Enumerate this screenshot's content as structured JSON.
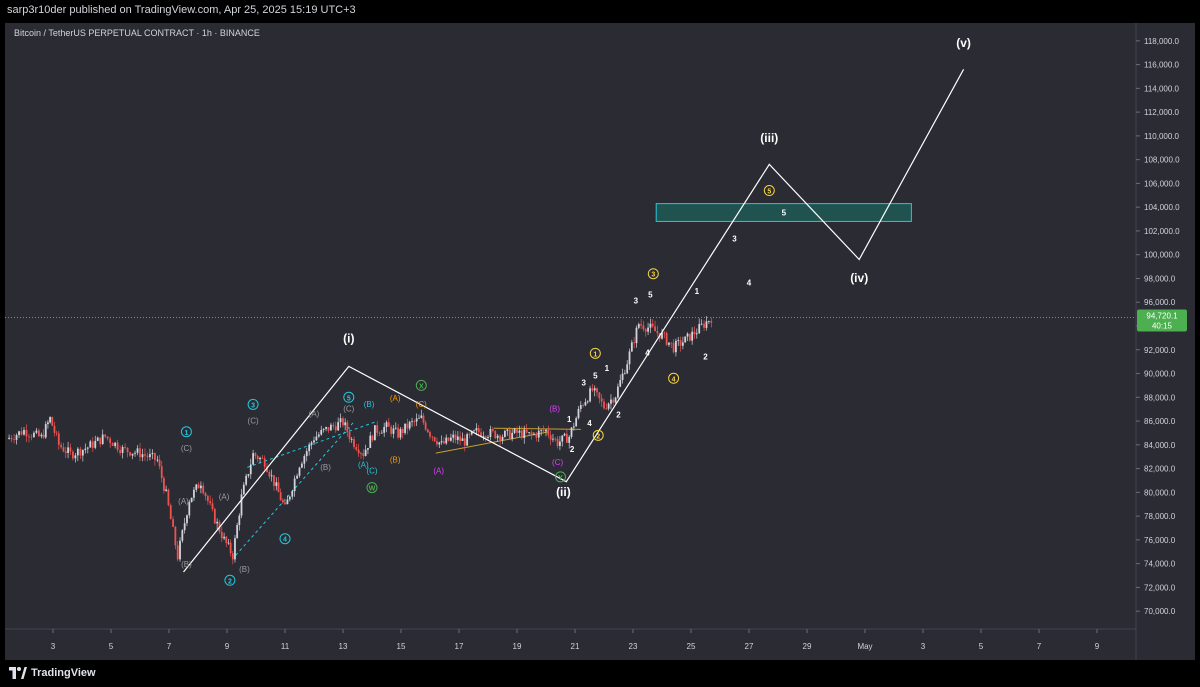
{
  "header": {
    "publisher_line": "sarp3r10der published on TradingView.com, Apr 25, 2025 15:19 UTC+3"
  },
  "chart_title": "Bitcoin / TetherUS PERPETUAL CONTRACT · 1h · BINANCE",
  "footer": {
    "brand": "TradingView"
  },
  "price_label": {
    "value": "94,720.1",
    "countdown": "40:15"
  },
  "colors": {
    "background": "#2a2b33",
    "up": "#d1d4dc",
    "down": "#ef5350",
    "wave": "#ffffff",
    "target_zone": "#1e5a56",
    "target_zone_border": "#26c6da",
    "current_price": "#4caf50",
    "price_tag": "#4caf50",
    "orange_label": "#ff9800",
    "yellow_label": "#f5d442",
    "cyan_label": "#26c6da",
    "green_label": "#4caf50",
    "purple_label": "#e040fb",
    "gray_label": "#9e9e9e"
  },
  "chart_data": {
    "type": "candlestick",
    "title": "Bitcoin / TetherUS PERPETUAL CONTRACT · 1h · BINANCE",
    "y_ticks": [
      70000,
      72000,
      74000,
      76000,
      78000,
      80000,
      82000,
      84000,
      86000,
      88000,
      90000,
      92000,
      94000,
      96000,
      98000,
      100000,
      102000,
      104000,
      106000,
      108000,
      110000,
      112000,
      114000,
      116000,
      118000
    ],
    "y_tick_labels": [
      "70,000.0",
      "72,000.0",
      "74,000.0",
      "76,000.0",
      "78,000.0",
      "80,000.0",
      "82,000.0",
      "84,000.0",
      "86,000.0",
      "88,000.0",
      "90,000.0",
      "92,000.0",
      "94,000.0",
      "96,000.0",
      "98,000.0",
      "100,000.0",
      "102,000.0",
      "104,000.0",
      "106,000.0",
      "108,000.0",
      "110,000.0",
      "112,000.0",
      "114,000.0",
      "116,000.0",
      "118,000.0"
    ],
    "ylim": [
      68500,
      119500
    ],
    "x_range_days": [
      1.4,
      11.5
    ],
    "x_ticks": [
      {
        "day": 3,
        "label": "3"
      },
      {
        "day": 5,
        "label": "5"
      },
      {
        "day": 7,
        "label": "7"
      },
      {
        "day": 9,
        "label": "9"
      },
      {
        "day": 11,
        "label": "11"
      },
      {
        "day": 13,
        "label": "13"
      },
      {
        "day": 15,
        "label": "15"
      },
      {
        "day": 17,
        "label": "17"
      },
      {
        "day": 19,
        "label": "19"
      },
      {
        "day": 21,
        "label": "21"
      },
      {
        "day": 23,
        "label": "23"
      },
      {
        "day": 25,
        "label": "25"
      },
      {
        "day": 27,
        "label": "27"
      },
      {
        "day": 29,
        "label": "29"
      },
      {
        "day": 31,
        "label": "May"
      },
      {
        "day": 33,
        "label": "3"
      },
      {
        "day": 35,
        "label": "5"
      },
      {
        "day": 37,
        "label": "7"
      },
      {
        "day": 39,
        "label": "9"
      }
    ],
    "current_price": 94720.1,
    "price_path": [
      [
        1.4,
        84500
      ],
      [
        2.0,
        85200
      ],
      [
        2.6,
        84600
      ],
      [
        2.9,
        86200
      ],
      [
        3.2,
        84000
      ],
      [
        3.6,
        83200
      ],
      [
        4.2,
        83800
      ],
      [
        4.8,
        84700
      ],
      [
        5.4,
        83600
      ],
      [
        6.0,
        83300
      ],
      [
        6.6,
        82700
      ],
      [
        6.9,
        79800
      ],
      [
        7.3,
        74600
      ],
      [
        7.7,
        79400
      ],
      [
        8.1,
        80900
      ],
      [
        8.5,
        78200
      ],
      [
        8.9,
        76000
      ],
      [
        9.2,
        74700
      ],
      [
        9.5,
        79600
      ],
      [
        9.9,
        83200
      ],
      [
        10.3,
        82600
      ],
      [
        10.7,
        80400
      ],
      [
        11.0,
        78600
      ],
      [
        11.5,
        82400
      ],
      [
        12.0,
        84600
      ],
      [
        12.5,
        85400
      ],
      [
        13.0,
        85900
      ],
      [
        13.3,
        84400
      ],
      [
        13.7,
        83300
      ],
      [
        14.1,
        85200
      ],
      [
        14.5,
        85500
      ],
      [
        14.9,
        84900
      ],
      [
        15.3,
        85700
      ],
      [
        15.7,
        86200
      ],
      [
        16.0,
        85000
      ],
      [
        16.4,
        84000
      ],
      [
        16.8,
        84600
      ],
      [
        17.2,
        84300
      ],
      [
        17.6,
        85100
      ],
      [
        18.0,
        85000
      ],
      [
        18.5,
        84800
      ],
      [
        19.0,
        85000
      ],
      [
        19.5,
        84800
      ],
      [
        20.0,
        85200
      ],
      [
        20.4,
        84200
      ],
      [
        20.8,
        84700
      ],
      [
        21.2,
        87300
      ],
      [
        21.6,
        88600
      ],
      [
        22.0,
        87200
      ],
      [
        22.4,
        88200
      ],
      [
        22.8,
        91000
      ],
      [
        23.2,
        94200
      ],
      [
        23.6,
        93800
      ],
      [
        24.0,
        93200
      ],
      [
        24.4,
        92200
      ],
      [
        24.8,
        92800
      ],
      [
        25.2,
        93600
      ],
      [
        25.7,
        94720
      ]
    ],
    "wave_projection": [
      [
        7.5,
        73300
      ],
      [
        13.2,
        90600
      ],
      [
        20.7,
        80900
      ],
      [
        27.7,
        107600
      ],
      [
        30.8,
        99600
      ],
      [
        34.4,
        115600
      ]
    ],
    "target_zone": {
      "x_from": 23.8,
      "x_to": 32.6,
      "y_from": 102800,
      "y_to": 104300,
      "label": "5"
    },
    "yellow_channel": [
      [
        [
          16.2,
          83300
        ],
        [
          20.1,
          85100
        ]
      ],
      [
        [
          18.2,
          85400
        ],
        [
          21.2,
          85300
        ]
      ]
    ],
    "cyan_channel": [
      [
        [
          9.3,
          74700
        ],
        [
          13.4,
          86000
        ]
      ],
      [
        [
          9.7,
          82100
        ],
        [
          14.2,
          86000
        ]
      ]
    ],
    "wave_labels": [
      {
        "text": "(i)",
        "day": 13.2,
        "price": 92600,
        "style": "big"
      },
      {
        "text": "(ii)",
        "day": 20.6,
        "price": 79700,
        "style": "big"
      },
      {
        "text": "(iii)",
        "day": 27.7,
        "price": 109500,
        "style": "big"
      },
      {
        "text": "(iv)",
        "day": 30.8,
        "price": 97700,
        "style": "big"
      },
      {
        "text": "(v)",
        "day": 34.4,
        "price": 117500,
        "style": "big"
      },
      {
        "text": "1",
        "day": 7.6,
        "price": 85100,
        "style": "circle",
        "color": "cyan"
      },
      {
        "text": "(C)",
        "day": 7.6,
        "price": 83500,
        "style": "small",
        "color": "gray"
      },
      {
        "text": "(A)",
        "day": 7.5,
        "price": 79000,
        "style": "small",
        "color": "gray"
      },
      {
        "text": "(B)",
        "day": 7.6,
        "price": 73700,
        "style": "small",
        "color": "gray"
      },
      {
        "text": "2",
        "day": 9.1,
        "price": 72600,
        "style": "circle",
        "color": "cyan"
      },
      {
        "text": "(B)",
        "day": 9.6,
        "price": 73300,
        "style": "small",
        "color": "gray"
      },
      {
        "text": "(A)",
        "day": 8.9,
        "price": 79400,
        "style": "small",
        "color": "gray"
      },
      {
        "text": "3",
        "day": 9.9,
        "price": 87400,
        "style": "circle",
        "color": "cyan"
      },
      {
        "text": "(C)",
        "day": 9.9,
        "price": 85800,
        "style": "small",
        "color": "gray"
      },
      {
        "text": "4",
        "day": 11.0,
        "price": 76100,
        "style": "circle",
        "color": "cyan"
      },
      {
        "text": "(A)",
        "day": 12.0,
        "price": 86400,
        "style": "small",
        "color": "gray"
      },
      {
        "text": "(B)",
        "day": 12.4,
        "price": 81900,
        "style": "small",
        "color": "gray"
      },
      {
        "text": "5",
        "day": 13.2,
        "price": 88000,
        "style": "circle",
        "color": "cyan"
      },
      {
        "text": "(C)",
        "day": 13.2,
        "price": 86800,
        "style": "small",
        "color": "gray"
      },
      {
        "text": "(B)",
        "day": 13.9,
        "price": 87200,
        "style": "small",
        "color": "cyan"
      },
      {
        "text": "(A)",
        "day": 13.7,
        "price": 82100,
        "style": "small",
        "color": "cyan"
      },
      {
        "text": "(C)",
        "day": 14.0,
        "price": 81600,
        "style": "small",
        "color": "cyan"
      },
      {
        "text": "W",
        "day": 14.0,
        "price": 80400,
        "style": "circle",
        "color": "green"
      },
      {
        "text": "(A)",
        "day": 14.8,
        "price": 87700,
        "style": "small",
        "color": "orange"
      },
      {
        "text": "(B)",
        "day": 14.8,
        "price": 82500,
        "style": "small",
        "color": "orange"
      },
      {
        "text": "X",
        "day": 15.7,
        "price": 89000,
        "style": "circle",
        "color": "green"
      },
      {
        "text": "(C)",
        "day": 15.7,
        "price": 87200,
        "style": "small",
        "color": "orange"
      },
      {
        "text": "(A)",
        "day": 16.3,
        "price": 81600,
        "style": "small",
        "color": "purple"
      },
      {
        "text": "(B)",
        "day": 20.3,
        "price": 86800,
        "style": "small",
        "color": "purple"
      },
      {
        "text": "(C)",
        "day": 20.4,
        "price": 82300,
        "style": "small",
        "color": "purple"
      },
      {
        "text": "Y",
        "day": 20.5,
        "price": 81300,
        "style": "circle",
        "color": "green"
      },
      {
        "text": "1",
        "day": 20.8,
        "price": 85900,
        "style": "plain"
      },
      {
        "text": "2",
        "day": 20.9,
        "price": 83400,
        "style": "plain"
      },
      {
        "text": "3",
        "day": 21.3,
        "price": 89000,
        "style": "plain"
      },
      {
        "text": "4",
        "day": 21.5,
        "price": 85600,
        "style": "plain"
      },
      {
        "text": "5",
        "day": 21.7,
        "price": 89600,
        "style": "plain"
      },
      {
        "text": "1",
        "day": 22.1,
        "price": 90200,
        "style": "plain"
      },
      {
        "text": "2",
        "day": 22.5,
        "price": 86300,
        "style": "plain"
      },
      {
        "text": "1",
        "day": 21.7,
        "price": 91700,
        "style": "circle",
        "color": "yellow"
      },
      {
        "text": "2",
        "day": 21.8,
        "price": 84800,
        "style": "circle",
        "color": "yellow"
      },
      {
        "text": "3",
        "day": 23.1,
        "price": 95900,
        "style": "plain"
      },
      {
        "text": "5",
        "day": 23.6,
        "price": 96400,
        "style": "plain"
      },
      {
        "text": "3",
        "day": 23.7,
        "price": 98400,
        "style": "circle",
        "color": "yellow"
      },
      {
        "text": "4",
        "day": 23.5,
        "price": 91500,
        "style": "plain"
      },
      {
        "text": "4",
        "day": 24.4,
        "price": 89600,
        "style": "circle",
        "color": "yellow"
      },
      {
        "text": "1",
        "day": 25.2,
        "price": 96700,
        "style": "plain"
      },
      {
        "text": "2",
        "day": 25.5,
        "price": 91200,
        "style": "plain"
      },
      {
        "text": "3",
        "day": 26.5,
        "price": 101100,
        "style": "plain"
      },
      {
        "text": "4",
        "day": 27.0,
        "price": 97400,
        "style": "plain"
      },
      {
        "text": "5",
        "day": 27.7,
        "price": 105400,
        "style": "circle",
        "color": "yellow"
      }
    ]
  }
}
